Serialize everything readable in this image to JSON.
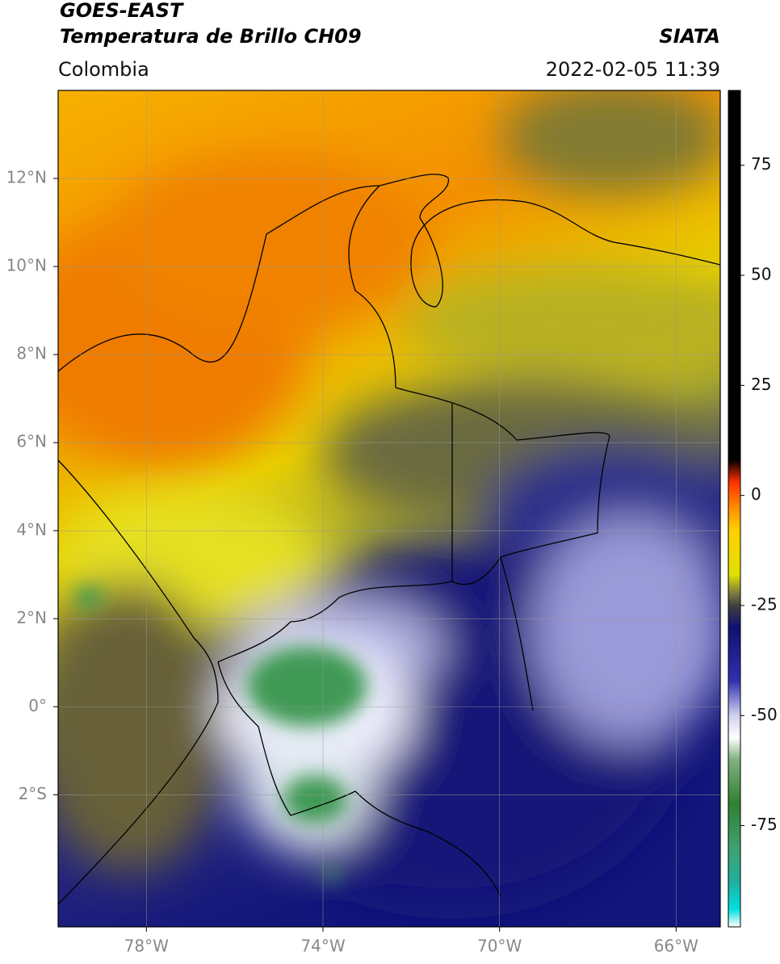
{
  "header": {
    "title": "GOES-EAST",
    "subtitle": "Temperatura de Brillo CH09",
    "source": "SIATA",
    "region": "Colombia",
    "datetime": "2022-02-05 11:39"
  },
  "map": {
    "lon_range": [
      -80,
      -65
    ],
    "lat_range": [
      -5,
      14
    ],
    "grid": true,
    "lon_ticks": [
      {
        "value": -78,
        "label": "78°W"
      },
      {
        "value": -74,
        "label": "74°W"
      },
      {
        "value": -70,
        "label": "70°W"
      },
      {
        "value": -66,
        "label": "66°W"
      }
    ],
    "lat_ticks": [
      {
        "value": 12,
        "label": "12°N"
      },
      {
        "value": 10,
        "label": "10°N"
      },
      {
        "value": 8,
        "label": "8°N"
      },
      {
        "value": 6,
        "label": "6°N"
      },
      {
        "value": 4,
        "label": "4°N"
      },
      {
        "value": 2,
        "label": "2°N"
      },
      {
        "value": 0,
        "label": "0°"
      },
      {
        "value": -2,
        "label": "2°S"
      }
    ]
  },
  "colorbar": {
    "range": [
      -98,
      92
    ],
    "ticks": [
      75,
      50,
      25,
      0,
      -25,
      -50,
      -75
    ],
    "stops": [
      {
        "value": -98,
        "color": "#ffffff"
      },
      {
        "value": -94,
        "color": "#00e0e0"
      },
      {
        "value": -88,
        "color": "#20b0a0"
      },
      {
        "value": -80,
        "color": "#40a070"
      },
      {
        "value": -70,
        "color": "#308030"
      },
      {
        "value": -60,
        "color": "#80b080"
      },
      {
        "value": -55,
        "color": "#ffffff"
      },
      {
        "value": -50,
        "color": "#d0d0f0"
      },
      {
        "value": -42,
        "color": "#3030b0"
      },
      {
        "value": -30,
        "color": "#101070"
      },
      {
        "value": -25,
        "color": "#404040"
      },
      {
        "value": -22,
        "color": "#808040"
      },
      {
        "value": -18,
        "color": "#e0e000"
      },
      {
        "value": -8,
        "color": "#ffd000"
      },
      {
        "value": -3,
        "color": "#ff9000"
      },
      {
        "value": 3,
        "color": "#ff3000"
      },
      {
        "value": 8,
        "color": "#000000"
      },
      {
        "value": 92,
        "color": "#000000"
      }
    ]
  }
}
